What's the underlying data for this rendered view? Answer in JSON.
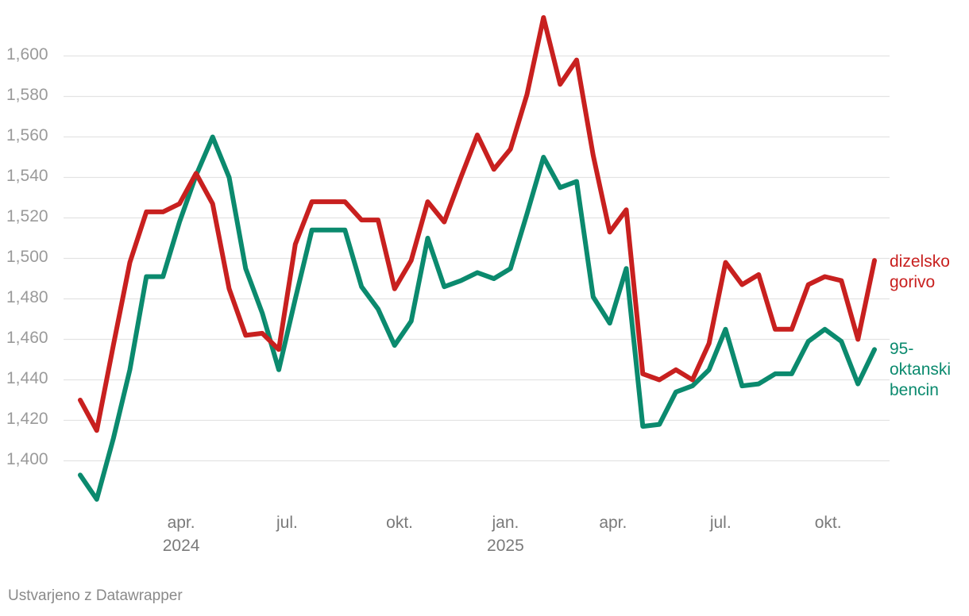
{
  "chart_data": {
    "type": "line",
    "title": "",
    "xlabel": "",
    "ylabel": "",
    "ylim": [
      1380,
      1620
    ],
    "yticks": [
      1400,
      1420,
      1440,
      1460,
      1480,
      1500,
      1520,
      1540,
      1560,
      1580,
      1600
    ],
    "ytick_labels": [
      "1,400",
      "1,420",
      "1,440",
      "1,460",
      "1,480",
      "1,500",
      "1,520",
      "1,540",
      "1,560",
      "1,580",
      "1,600"
    ],
    "x_range": [
      0,
      48
    ],
    "x_ticks": [
      {
        "x": 6.1,
        "label": "apr.",
        "year": "2024"
      },
      {
        "x": 12.5,
        "label": "jul.",
        "year": ""
      },
      {
        "x": 19.3,
        "label": "okt.",
        "year": ""
      },
      {
        "x": 25.7,
        "label": "jan.",
        "year": "2025"
      },
      {
        "x": 32.2,
        "label": "apr.",
        "year": ""
      },
      {
        "x": 38.7,
        "label": "jul.",
        "year": ""
      },
      {
        "x": 45.2,
        "label": "okt.",
        "year": ""
      }
    ],
    "x": [
      0,
      1,
      2,
      3,
      4,
      5,
      6,
      7,
      8,
      9,
      10,
      11,
      12,
      13,
      14,
      15,
      16,
      17,
      18,
      19,
      20,
      21,
      22,
      23,
      24,
      25,
      26,
      27,
      28,
      29,
      30,
      31,
      32,
      33,
      34,
      35,
      36,
      37,
      38,
      39,
      40,
      41,
      42,
      43,
      44,
      45,
      46,
      47,
      48
    ],
    "series": [
      {
        "name": "dizelsko gorivo",
        "label_lines": [
          "dizelsko",
          "gorivo"
        ],
        "color": "#c8201f",
        "values": [
          1430,
          1415,
          1457,
          1498,
          1523,
          1523,
          1527,
          1542,
          1527,
          1485,
          1462,
          1463,
          1455,
          1507,
          1528,
          1528,
          1528,
          1519,
          1519,
          1485,
          1499,
          1528,
          1518,
          1540,
          1561,
          1544,
          1554,
          1581,
          1619,
          1586,
          1598,
          1551,
          1513,
          1524,
          1443,
          1440,
          1445,
          1440,
          1458,
          1498,
          1487,
          1492,
          1465,
          1465,
          1487,
          1491,
          1489,
          1460,
          1499
        ]
      },
      {
        "name": "95-oktanski bencin",
        "label_lines": [
          "95-",
          "oktanski",
          "bencin"
        ],
        "color": "#0b8a6e",
        "values": [
          1393,
          1381,
          1411,
          1445,
          1491,
          1491,
          1518,
          1541,
          1560,
          1540,
          1495,
          1473,
          1445,
          1480,
          1514,
          1514,
          1514,
          1486,
          1475,
          1457,
          1469,
          1510,
          1486,
          1489,
          1493,
          1490,
          1495,
          1522,
          1550,
          1535,
          1538,
          1481,
          1468,
          1495,
          1417,
          1418,
          1434,
          1437,
          1445,
          1465,
          1437,
          1438,
          1443,
          1443,
          1459,
          1465,
          1459,
          1438,
          1455
        ]
      }
    ]
  },
  "footer": {
    "credit": "Ustvarjeno z Datawrapper"
  }
}
